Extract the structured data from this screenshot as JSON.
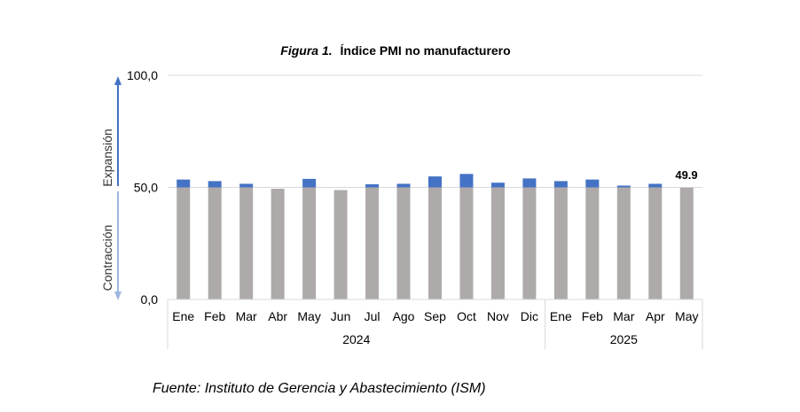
{
  "chart_data": {
    "type": "bar",
    "title_prefix": "Figura 1.",
    "title_main": "Índice PMI no manufacturero",
    "categories": [
      "Ene",
      "Feb",
      "Mar",
      "Abr",
      "May",
      "Jun",
      "Jul",
      "Ago",
      "Sep",
      "Oct",
      "Nov",
      "Dic",
      "Ene",
      "Feb",
      "Mar",
      "Apr",
      "May"
    ],
    "values": [
      53.5,
      52.8,
      51.6,
      49.4,
      53.8,
      48.8,
      51.4,
      51.6,
      54.9,
      56.0,
      52.1,
      54.0,
      52.8,
      53.5,
      50.8,
      51.6,
      49.9
    ],
    "groups": [
      {
        "label": "2024",
        "count": 12
      },
      {
        "label": "2025",
        "count": 5
      }
    ],
    "ylim": [
      0,
      100
    ],
    "threshold": 50,
    "yticks": [
      {
        "value": 0,
        "label": "0,0"
      },
      {
        "value": 50,
        "label": "50,0"
      },
      {
        "value": 100,
        "label": "100,0"
      }
    ],
    "expansion_label": "Expansión",
    "contraction_label": "Contracción",
    "last_value_label": "49.9",
    "base_color": "#aeaaaa",
    "above_color": "#4472c4",
    "expansion_arrow_color": "#4472c4",
    "contraction_arrow_color": "#9db7e0",
    "source": "Fuente: Instituto de Gerencia y Abastecimiento (ISM)"
  }
}
